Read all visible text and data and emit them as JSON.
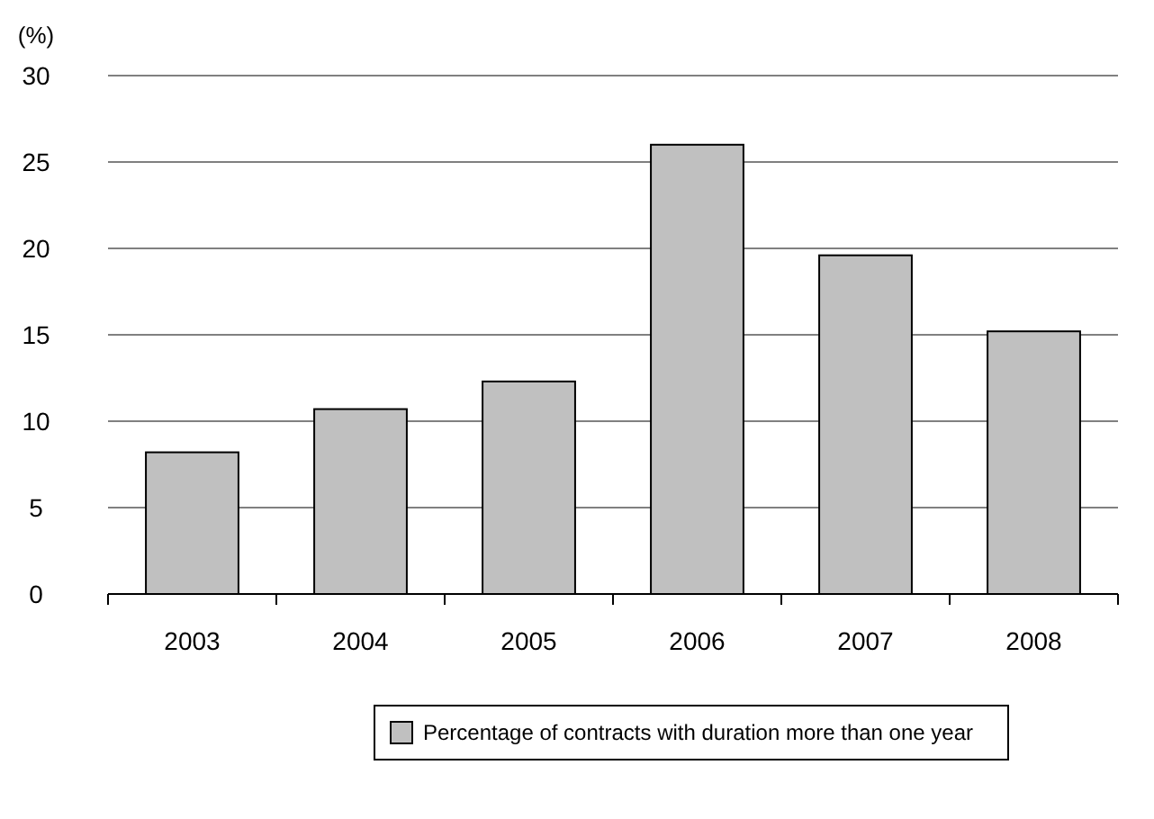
{
  "chart_data": {
    "type": "bar",
    "ylabel": "(%)",
    "categories": [
      "2003",
      "2004",
      "2005",
      "2006",
      "2007",
      "2008"
    ],
    "series": [
      {
        "name": "Percentage of contracts with duration more than one year",
        "color": "#c0c0c0",
        "values": [
          8.2,
          10.7,
          12.3,
          26.0,
          19.6,
          15.2
        ]
      }
    ],
    "ylim": [
      0,
      30
    ],
    "yticks": [
      0,
      5,
      10,
      15,
      20,
      25,
      30
    ],
    "grid": "y",
    "legend": "bottom"
  }
}
